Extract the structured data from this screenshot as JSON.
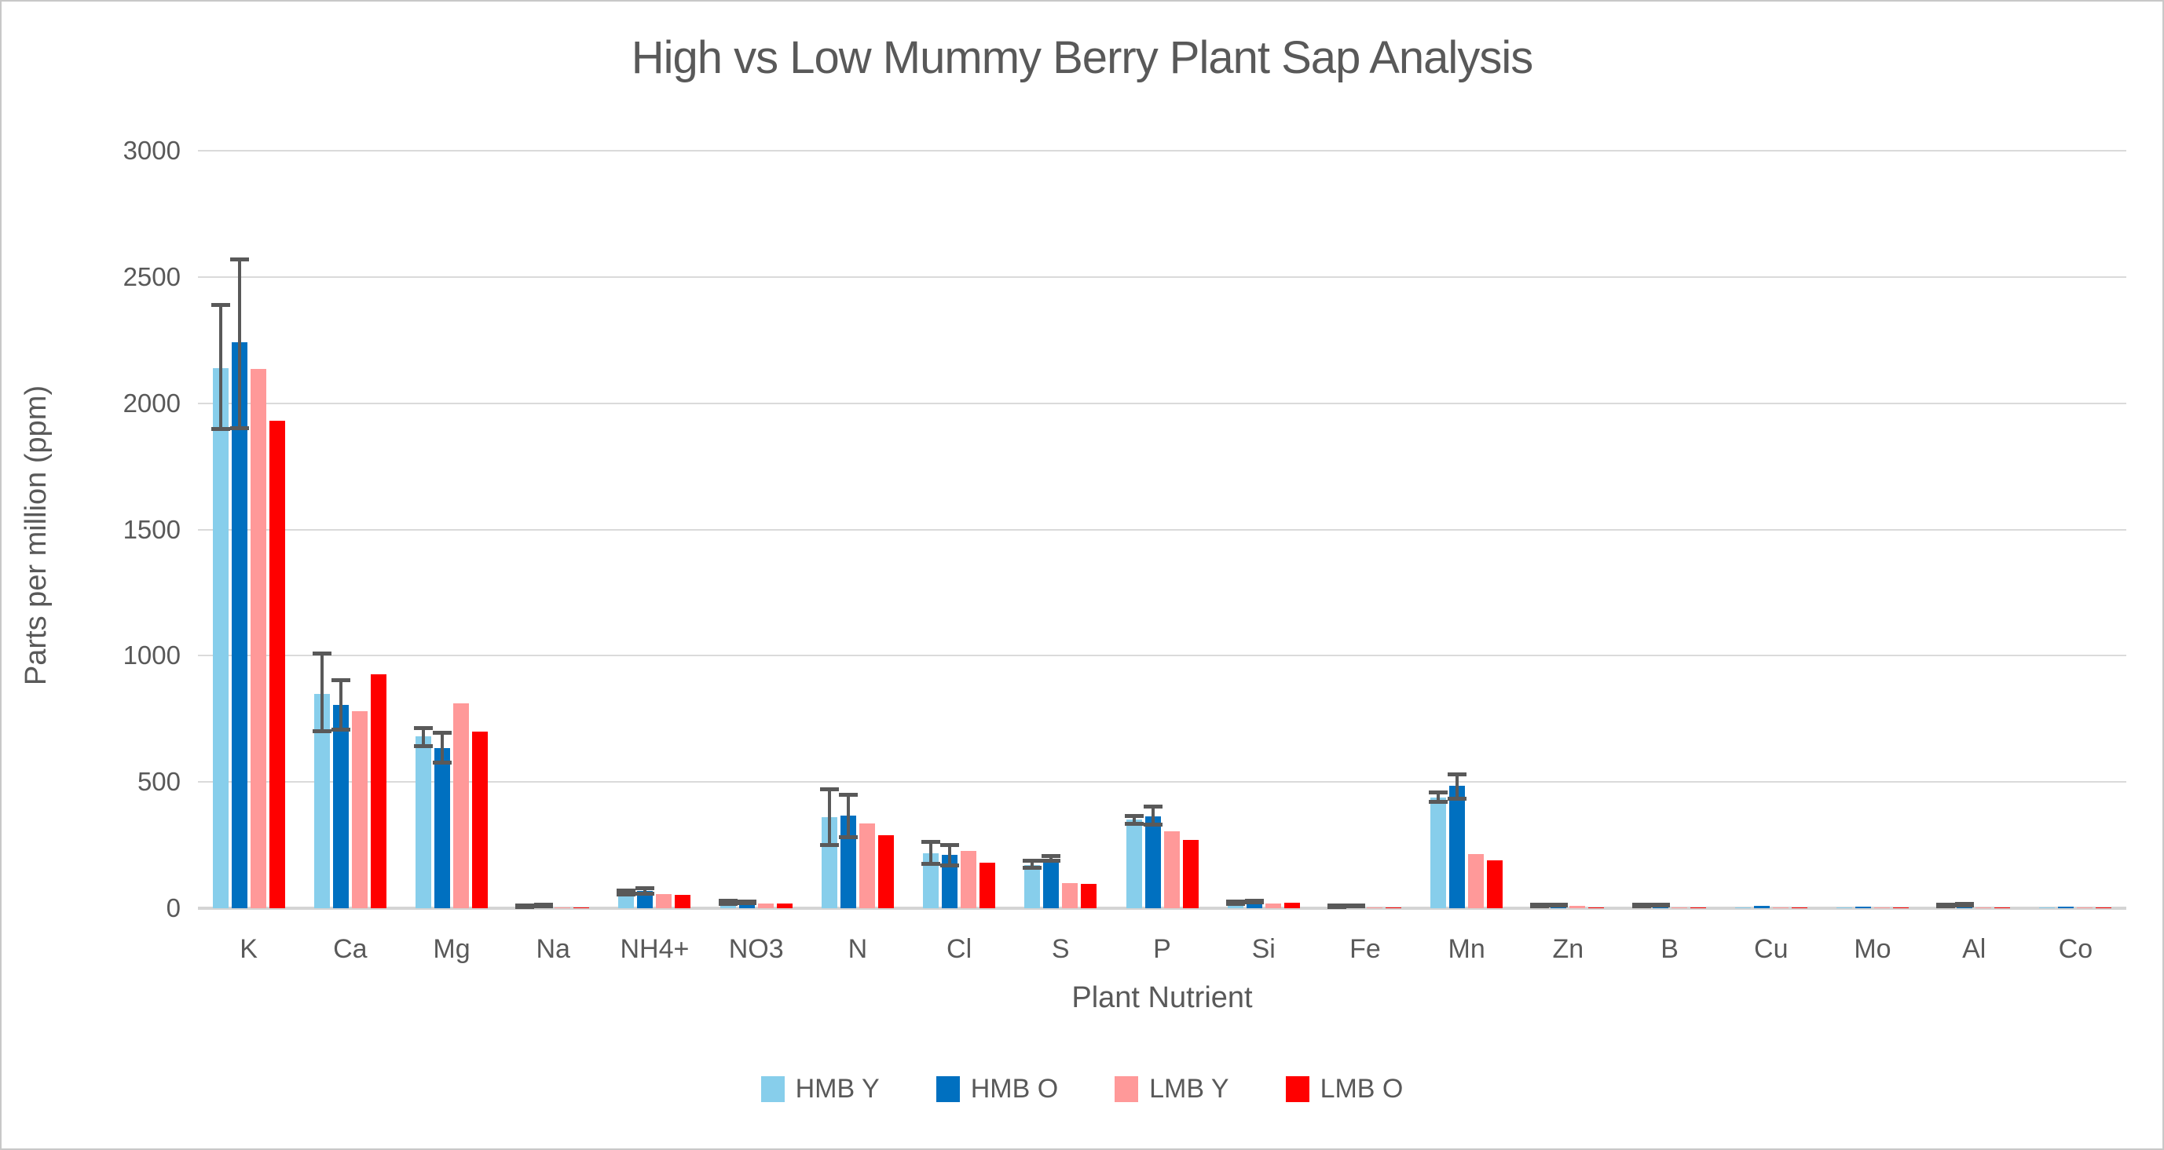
{
  "chart_data": {
    "type": "bar",
    "title": "High vs Low Mummy Berry Plant Sap Analysis",
    "xlabel": "Plant Nutrient",
    "ylabel": "Parts per million (ppm)",
    "ylim": [
      0,
      3000
    ],
    "yticks": [
      0,
      500,
      1000,
      1500,
      2000,
      2500,
      3000
    ],
    "grid": true,
    "legend_position": "bottom-center",
    "error_bar_color": "#595959",
    "gridline_color": "#dadada",
    "text_color": "#595959",
    "categories": [
      "K",
      "Ca",
      "Mg",
      "Na",
      "NH4+",
      "NO3",
      "N",
      "Cl",
      "S",
      "P",
      "Si",
      "Fe",
      "Mn",
      "Zn",
      "B",
      "Cu",
      "Mo",
      "Al",
      "Co"
    ],
    "series": [
      {
        "name": "HMB Y",
        "color": "#87CEEB",
        "values": [
          2140,
          850,
          680,
          8,
          62,
          22,
          360,
          218,
          170,
          350,
          23,
          8,
          437,
          10,
          10,
          3,
          2,
          10,
          2
        ],
        "error_plus": [
          250,
          160,
          35,
          4,
          10,
          8,
          112,
          45,
          20,
          18,
          6,
          4,
          24,
          4,
          4,
          null,
          null,
          5,
          null
        ],
        "error_minus": [
          245,
          150,
          40,
          4,
          10,
          8,
          110,
          45,
          12,
          18,
          6,
          4,
          18,
          4,
          4,
          null,
          null,
          5,
          null
        ]
      },
      {
        "name": "HMB O",
        "color": "#0070C0",
        "values": [
          2240,
          805,
          635,
          10,
          68,
          24,
          368,
          212,
          197,
          365,
          26,
          9,
          485,
          12,
          12,
          8,
          7,
          15,
          6
        ],
        "error_plus": [
          330,
          100,
          60,
          4,
          12,
          4,
          83,
          40,
          10,
          38,
          5,
          4,
          48,
          4,
          4,
          null,
          null,
          5,
          null
        ],
        "error_minus": [
          340,
          100,
          60,
          4,
          12,
          4,
          88,
          45,
          10,
          36,
          5,
          4,
          52,
          4,
          4,
          null,
          null,
          5,
          null
        ]
      },
      {
        "name": "LMB Y",
        "color": "#FF9999",
        "values": [
          2135,
          780,
          810,
          3,
          55,
          18,
          335,
          227,
          100,
          305,
          20,
          3,
          215,
          8,
          2,
          1,
          1,
          2,
          1
        ],
        "error_plus": null,
        "error_minus": null
      },
      {
        "name": "LMB O",
        "color": "#FF0000",
        "values": [
          1930,
          925,
          700,
          3,
          52,
          18,
          290,
          180,
          95,
          270,
          23,
          3,
          190,
          2,
          2,
          1,
          1,
          2,
          1
        ],
        "error_plus": null,
        "error_minus": null
      }
    ]
  }
}
